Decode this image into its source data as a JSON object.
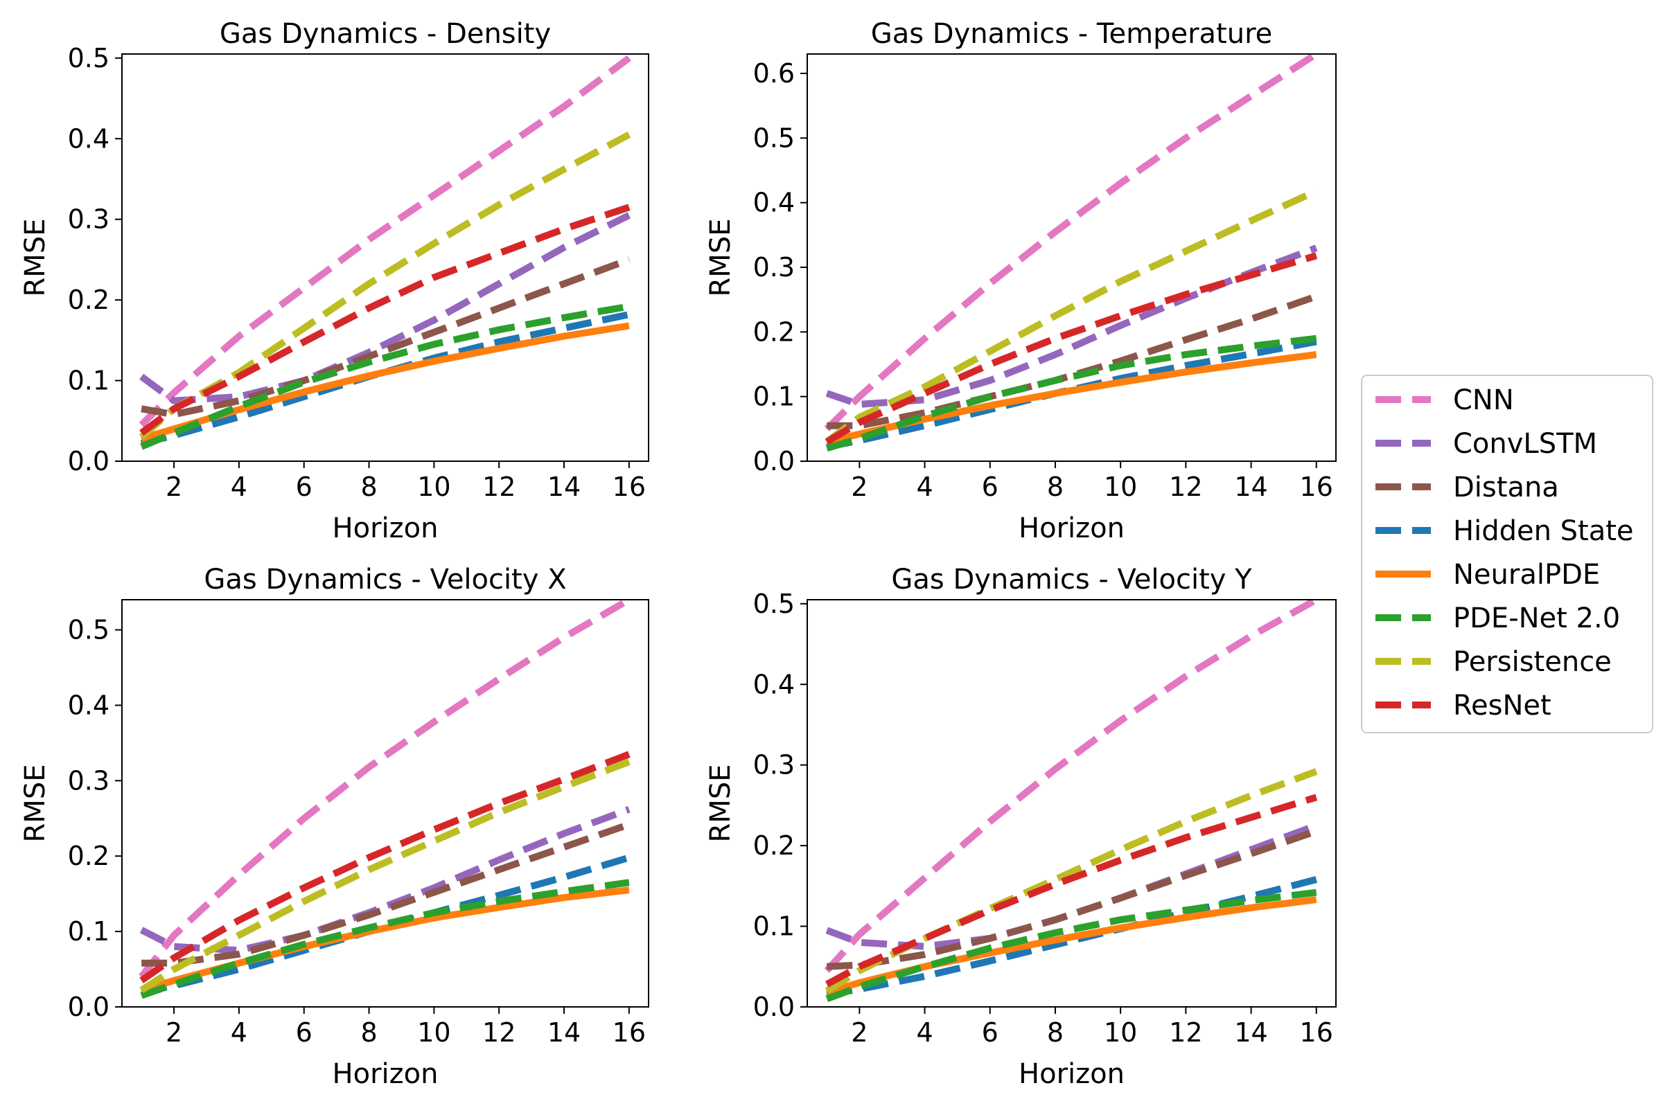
{
  "chart_data": [
    {
      "type": "line",
      "title": "Gas Dynamics - Density",
      "xlabel": "Horizon",
      "ylabel": "RMSE",
      "xlim": [
        0.4,
        16.6
      ],
      "ylim": [
        0,
        0.505
      ],
      "xticks": [
        "2",
        "4",
        "6",
        "8",
        "10",
        "12",
        "14",
        "16"
      ],
      "yticks": [
        "0.0",
        "0.1",
        "0.2",
        "0.3",
        "0.4",
        "0.5"
      ],
      "grid": false,
      "x": [
        1,
        2,
        4,
        6,
        8,
        10,
        12,
        14,
        16
      ],
      "series": [
        {
          "name": "CNN",
          "values": [
            0.045,
            0.085,
            0.155,
            0.215,
            0.275,
            0.33,
            0.385,
            0.44,
            0.5
          ]
        },
        {
          "name": "ConvLSTM",
          "values": [
            0.105,
            0.075,
            0.08,
            0.1,
            0.135,
            0.175,
            0.22,
            0.265,
            0.305
          ]
        },
        {
          "name": "Distana",
          "values": [
            0.065,
            0.058,
            0.075,
            0.1,
            0.13,
            0.16,
            0.19,
            0.22,
            0.25
          ]
        },
        {
          "name": "Hidden State",
          "values": [
            0.022,
            0.032,
            0.055,
            0.08,
            0.105,
            0.128,
            0.148,
            0.165,
            0.182
          ]
        },
        {
          "name": "NeuralPDE",
          "values": [
            0.028,
            0.04,
            0.064,
            0.086,
            0.106,
            0.124,
            0.14,
            0.155,
            0.168
          ]
        },
        {
          "name": "PDE-Net 2.0",
          "values": [
            0.018,
            0.035,
            0.068,
            0.098,
            0.123,
            0.145,
            0.163,
            0.178,
            0.192
          ]
        },
        {
          "name": "Persistence",
          "values": [
            0.03,
            0.065,
            0.11,
            0.165,
            0.22,
            0.27,
            0.318,
            0.362,
            0.405
          ]
        },
        {
          "name": "ResNet",
          "values": [
            0.035,
            0.065,
            0.105,
            0.148,
            0.19,
            0.228,
            0.258,
            0.288,
            0.315
          ]
        }
      ]
    },
    {
      "type": "line",
      "title": "Gas Dynamics - Temperature",
      "xlabel": "Horizon",
      "ylabel": "RMSE",
      "xlim": [
        0.4,
        16.6
      ],
      "ylim": [
        0,
        0.63
      ],
      "xticks": [
        "2",
        "4",
        "6",
        "8",
        "10",
        "12",
        "14",
        "16"
      ],
      "yticks": [
        "0.0",
        "0.1",
        "0.2",
        "0.3",
        "0.4",
        "0.5",
        "0.6"
      ],
      "grid": false,
      "x": [
        1,
        2,
        4,
        6,
        8,
        10,
        12,
        14,
        16
      ],
      "series": [
        {
          "name": "CNN",
          "values": [
            0.05,
            0.1,
            0.19,
            0.275,
            0.355,
            0.43,
            0.5,
            0.565,
            0.63
          ]
        },
        {
          "name": "ConvLSTM",
          "values": [
            0.105,
            0.088,
            0.095,
            0.125,
            0.165,
            0.21,
            0.252,
            0.292,
            0.33
          ]
        },
        {
          "name": "Distana",
          "values": [
            0.055,
            0.055,
            0.075,
            0.1,
            0.125,
            0.155,
            0.188,
            0.22,
            0.255
          ]
        },
        {
          "name": "Hidden State",
          "values": [
            0.022,
            0.032,
            0.055,
            0.08,
            0.105,
            0.128,
            0.148,
            0.166,
            0.185
          ]
        },
        {
          "name": "NeuralPDE",
          "values": [
            0.03,
            0.042,
            0.065,
            0.086,
            0.105,
            0.122,
            0.138,
            0.152,
            0.165
          ]
        },
        {
          "name": "PDE-Net 2.0",
          "values": [
            0.02,
            0.035,
            0.07,
            0.1,
            0.125,
            0.148,
            0.165,
            0.178,
            0.19
          ]
        },
        {
          "name": "Persistence",
          "values": [
            0.03,
            0.068,
            0.115,
            0.17,
            0.225,
            0.278,
            0.325,
            0.372,
            0.418
          ]
        },
        {
          "name": "ResNet",
          "values": [
            0.03,
            0.06,
            0.105,
            0.15,
            0.19,
            0.225,
            0.258,
            0.288,
            0.318
          ]
        }
      ]
    },
    {
      "type": "line",
      "title": "Gas Dynamics - Velocity X",
      "xlabel": "Horizon",
      "ylabel": "RMSE",
      "xlim": [
        0.4,
        16.6
      ],
      "ylim": [
        0,
        0.54
      ],
      "xticks": [
        "2",
        "4",
        "6",
        "8",
        "10",
        "12",
        "14",
        "16"
      ],
      "yticks": [
        "0.0",
        "0.1",
        "0.2",
        "0.3",
        "0.4",
        "0.5"
      ],
      "grid": false,
      "x": [
        1,
        2,
        4,
        6,
        8,
        10,
        12,
        14,
        16
      ],
      "series": [
        {
          "name": "CNN",
          "values": [
            0.04,
            0.095,
            0.175,
            0.25,
            0.318,
            0.378,
            0.435,
            0.49,
            0.54
          ]
        },
        {
          "name": "ConvLSTM",
          "values": [
            0.102,
            0.08,
            0.075,
            0.095,
            0.125,
            0.158,
            0.195,
            0.23,
            0.262
          ]
        },
        {
          "name": "Distana",
          "values": [
            0.058,
            0.058,
            0.07,
            0.095,
            0.122,
            0.152,
            0.182,
            0.212,
            0.242
          ]
        },
        {
          "name": "Hidden State",
          "values": [
            0.02,
            0.028,
            0.05,
            0.075,
            0.1,
            0.125,
            0.148,
            0.172,
            0.198
          ]
        },
        {
          "name": "NeuralPDE",
          "values": [
            0.022,
            0.035,
            0.058,
            0.08,
            0.1,
            0.118,
            0.132,
            0.145,
            0.155
          ]
        },
        {
          "name": "PDE-Net 2.0",
          "values": [
            0.015,
            0.03,
            0.058,
            0.083,
            0.105,
            0.125,
            0.14,
            0.153,
            0.165
          ]
        },
        {
          "name": "Persistence",
          "values": [
            0.022,
            0.05,
            0.095,
            0.14,
            0.182,
            0.22,
            0.258,
            0.292,
            0.325
          ]
        },
        {
          "name": "ResNet",
          "values": [
            0.035,
            0.065,
            0.115,
            0.158,
            0.198,
            0.235,
            0.27,
            0.302,
            0.335
          ]
        }
      ]
    },
    {
      "type": "line",
      "title": "Gas Dynamics - Velocity Y",
      "xlabel": "Horizon",
      "ylabel": "RMSE",
      "xlim": [
        0.4,
        16.6
      ],
      "ylim": [
        0,
        0.505
      ],
      "xticks": [
        "2",
        "4",
        "6",
        "8",
        "10",
        "12",
        "14",
        "16"
      ],
      "yticks": [
        "0.0",
        "0.1",
        "0.2",
        "0.3",
        "0.4",
        "0.5"
      ],
      "grid": false,
      "x": [
        1,
        2,
        4,
        6,
        8,
        10,
        12,
        14,
        16
      ],
      "series": [
        {
          "name": "CNN",
          "values": [
            0.045,
            0.09,
            0.16,
            0.23,
            0.295,
            0.355,
            0.41,
            0.46,
            0.505
          ]
        },
        {
          "name": "ConvLSTM",
          "values": [
            0.095,
            0.08,
            0.075,
            0.085,
            0.108,
            0.135,
            0.165,
            0.195,
            0.225
          ]
        },
        {
          "name": "Distana",
          "values": [
            0.05,
            0.052,
            0.065,
            0.085,
            0.108,
            0.135,
            0.163,
            0.19,
            0.218
          ]
        },
        {
          "name": "Hidden State",
          "values": [
            0.015,
            0.022,
            0.038,
            0.057,
            0.077,
            0.097,
            0.117,
            0.137,
            0.158
          ]
        },
        {
          "name": "NeuralPDE",
          "values": [
            0.018,
            0.03,
            0.05,
            0.067,
            0.083,
            0.098,
            0.111,
            0.123,
            0.133
          ]
        },
        {
          "name": "PDE-Net 2.0",
          "values": [
            0.01,
            0.025,
            0.05,
            0.073,
            0.092,
            0.108,
            0.12,
            0.132,
            0.142
          ]
        },
        {
          "name": "Persistence",
          "values": [
            0.02,
            0.045,
            0.085,
            0.122,
            0.158,
            0.195,
            0.23,
            0.262,
            0.292
          ]
        },
        {
          "name": "ResNet",
          "values": [
            0.028,
            0.05,
            0.085,
            0.12,
            0.152,
            0.182,
            0.21,
            0.235,
            0.26
          ]
        }
      ]
    }
  ],
  "legend": {
    "placement": "right",
    "entries": [
      {
        "name": "CNN",
        "color": "#e377c2",
        "style": "dashed"
      },
      {
        "name": "ConvLSTM",
        "color": "#9467bd",
        "style": "dashed"
      },
      {
        "name": "Distana",
        "color": "#8c564b",
        "style": "dashed"
      },
      {
        "name": "Hidden State",
        "color": "#1f77b4",
        "style": "dashed"
      },
      {
        "name": "NeuralPDE",
        "color": "#ff7f0e",
        "style": "solid"
      },
      {
        "name": "PDE-Net 2.0",
        "color": "#2ca02c",
        "style": "dashed"
      },
      {
        "name": "Persistence",
        "color": "#bcbd22",
        "style": "dashed"
      },
      {
        "name": "ResNet",
        "color": "#d62728",
        "style": "dashed"
      }
    ]
  }
}
